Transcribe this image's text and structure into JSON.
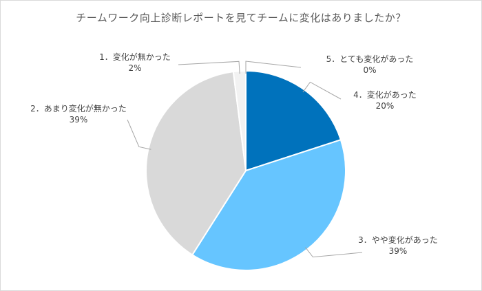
{
  "chart_data": {
    "type": "pie",
    "title": "チームワーク向上診断レポートを見てチームに変化はありましたか？",
    "start_angle_deg": 0,
    "direction": "clockwise",
    "slices": [
      {
        "label": "5．とても変化があった",
        "value": 0,
        "percent_label": "0%",
        "color": "#005fa8"
      },
      {
        "label": "4．変化があった",
        "value": 20,
        "percent_label": "20%",
        "color": "#0072bc"
      },
      {
        "label": "3．やや変化があった",
        "value": 39,
        "percent_label": "39%",
        "color": "#66c5ff"
      },
      {
        "label": "2．あまり変化が無かった",
        "value": 39,
        "percent_label": "39%",
        "color": "#d9d9d9"
      },
      {
        "label": "1．変化が無かった",
        "value": 2,
        "percent_label": "2%",
        "color": "#f2f2f2"
      }
    ],
    "slice_border_color": "#ffffff",
    "leader_line_color": "#a6a6a6"
  }
}
